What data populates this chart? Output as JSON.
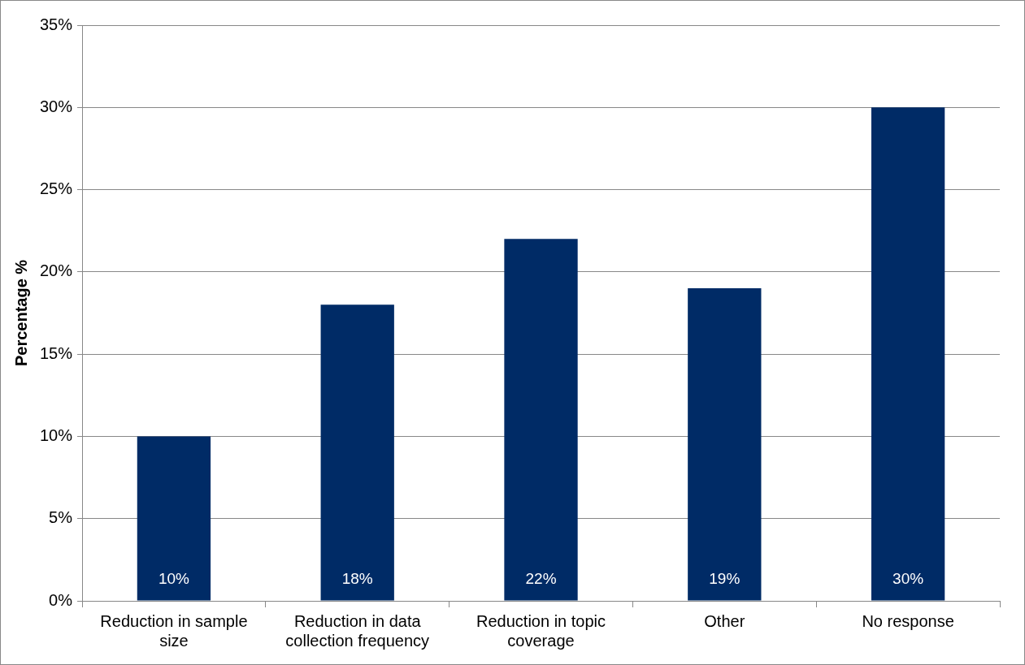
{
  "chart_data": {
    "type": "bar",
    "ylabel": "Percentage %",
    "categories": [
      "Reduction in sample size",
      "Reduction in data collection frequency",
      "Reduction in topic coverage",
      "Other",
      "No response"
    ],
    "values": [
      10,
      18,
      22,
      19,
      30
    ],
    "value_labels": [
      "10%",
      "18%",
      "22%",
      "19%",
      "30%"
    ],
    "color": "#002b66",
    "ylim": [
      0,
      35
    ],
    "yticks": [
      {
        "value": 0,
        "label": "0%"
      },
      {
        "value": 5,
        "label": "5%"
      },
      {
        "value": 10,
        "label": "10%"
      },
      {
        "value": 15,
        "label": "15%"
      },
      {
        "value": 20,
        "label": "20%"
      },
      {
        "value": 25,
        "label": "25%"
      },
      {
        "value": 30,
        "label": "30%"
      },
      {
        "value": 35,
        "label": "35%"
      }
    ],
    "grid": "y",
    "legend": false
  }
}
